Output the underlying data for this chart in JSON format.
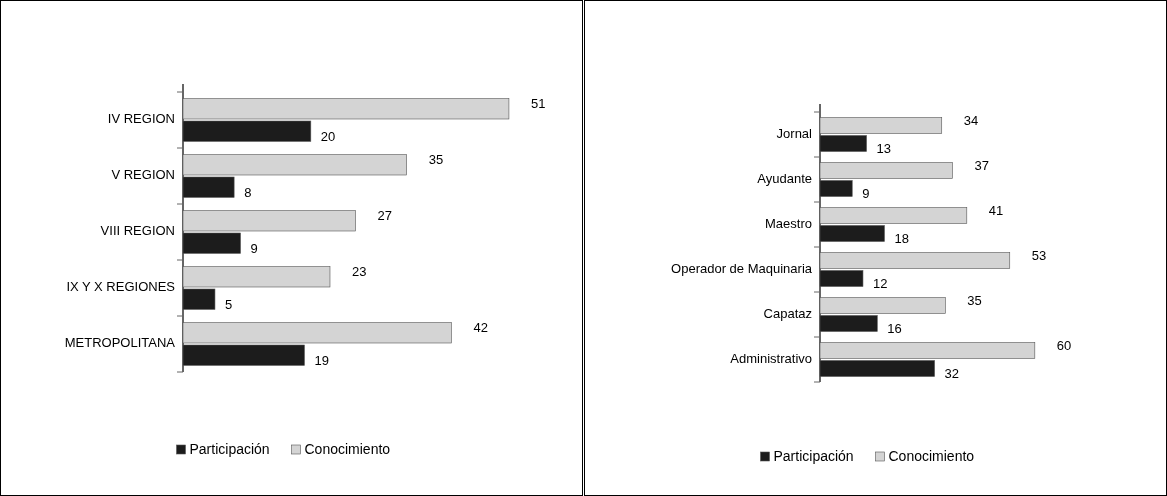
{
  "chart_data": [
    {
      "type": "bar",
      "orientation": "horizontal",
      "categories": [
        "IV REGION",
        "V REGION",
        "VIII REGION",
        "IX Y X REGIONES",
        "METROPOLITANA"
      ],
      "series": [
        {
          "name": "Participación",
          "color": "#1c1c1c",
          "values": [
            20,
            8,
            9,
            5,
            19
          ]
        },
        {
          "name": "Conocimiento",
          "color": "#d4d4d4",
          "values": [
            51,
            35,
            27,
            23,
            42
          ]
        }
      ],
      "tick_labels": "y",
      "data_labels": true,
      "legend": "bottom",
      "grid": false
    },
    {
      "type": "bar",
      "orientation": "horizontal",
      "categories": [
        "Jornal",
        "Ayudante",
        "Maestro",
        "Operador de Maquinaria",
        "Capataz",
        "Administrativo"
      ],
      "series": [
        {
          "name": "Participación",
          "color": "#1c1c1c",
          "values": [
            13,
            9,
            18,
            12,
            16,
            32
          ]
        },
        {
          "name": "Conocimiento",
          "color": "#d4d4d4",
          "values": [
            34,
            37,
            41,
            53,
            35,
            60
          ]
        }
      ],
      "tick_labels": "y",
      "data_labels": true,
      "legend": "bottom",
      "grid": false
    }
  ]
}
